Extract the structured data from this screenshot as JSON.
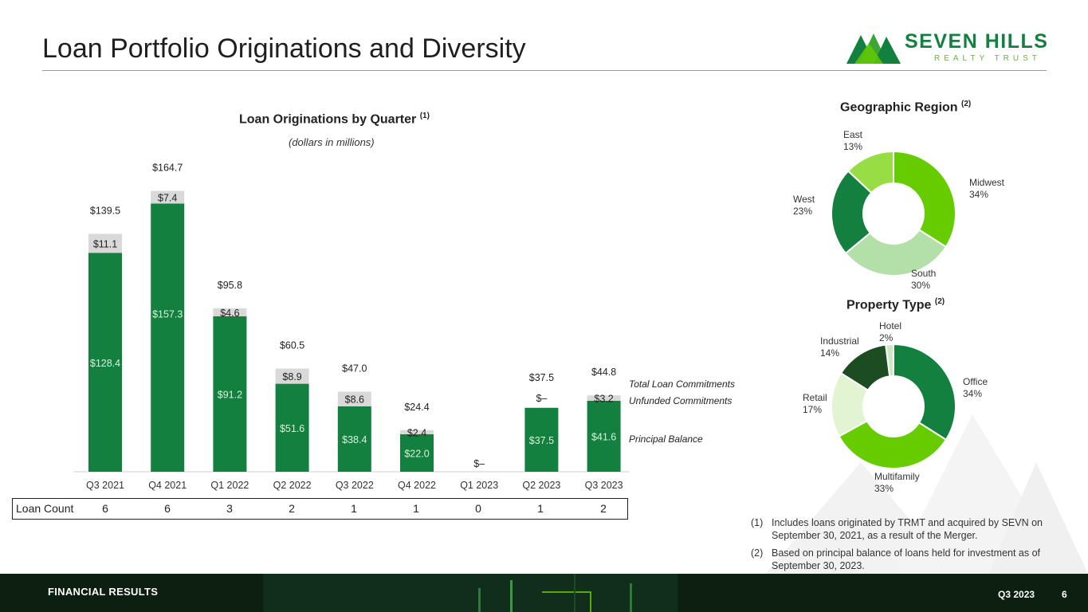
{
  "header": {
    "title": "Loan Portfolio Originations and Diversity",
    "logo_text": "SEVEN HILLS",
    "logo_subtext": "REALTY TRUST"
  },
  "colors": {
    "principal": "#138040",
    "unfunded": "#d9d9d9",
    "accent": "#66cc00"
  },
  "chart_data": [
    {
      "type": "bar",
      "title": "Loan Originations by Quarter",
      "title_note": "(1)",
      "subtitle": "(dollars in millions)",
      "categories": [
        "Q3 2021",
        "Q4 2021",
        "Q1 2022",
        "Q2 2022",
        "Q3 2022",
        "Q4 2022",
        "Q1 2023",
        "Q2 2023",
        "Q3 2023"
      ],
      "series": [
        {
          "name": "Principal Balance",
          "values": [
            128.4,
            157.3,
            91.2,
            51.6,
            38.4,
            22.0,
            0,
            37.5,
            41.6
          ],
          "labels": [
            "$128.4",
            "$157.3",
            "$91.2",
            "$51.6",
            "$38.4",
            "$22.0",
            "",
            "$37.5",
            "$41.6"
          ]
        },
        {
          "name": "Unfunded Commitments",
          "values": [
            11.1,
            7.4,
            4.6,
            8.9,
            8.6,
            2.4,
            0,
            0,
            3.2
          ],
          "labels": [
            "$11.1",
            "$7.4",
            "$4.6",
            "$8.9",
            "$8.6",
            "$2.4",
            "",
            "$–",
            "$3.2"
          ]
        }
      ],
      "totals": [
        139.5,
        164.7,
        95.8,
        60.5,
        47.0,
        24.4,
        0,
        37.5,
        44.8
      ],
      "total_labels": [
        "$139.5",
        "$164.7",
        "$95.8",
        "$60.5",
        "$47.0",
        "$24.4",
        "$–",
        "$37.5",
        "$44.8"
      ],
      "legend": [
        "Total Loan Commitments",
        "Unfunded Commitments",
        "Principal Balance"
      ],
      "ylim": [
        0,
        175
      ],
      "xlabel": "",
      "ylabel": ""
    },
    {
      "type": "pie",
      "title": "Geographic Region",
      "title_note": "(2)",
      "slices": [
        {
          "label": "Midwest",
          "value": 34,
          "pct": "34%",
          "color": "#66cc00"
        },
        {
          "label": "South",
          "value": 30,
          "pct": "30%",
          "color": "#b3e0a8"
        },
        {
          "label": "West",
          "value": 23,
          "pct": "23%",
          "color": "#138040"
        },
        {
          "label": "East",
          "value": 13,
          "pct": "13%",
          "color": "#99dd44"
        }
      ]
    },
    {
      "type": "pie",
      "title": "Property Type",
      "title_note": "(2)",
      "slices": [
        {
          "label": "Office",
          "value": 34,
          "pct": "34%",
          "color": "#138040"
        },
        {
          "label": "Multifamily",
          "value": 33,
          "pct": "33%",
          "color": "#66cc00"
        },
        {
          "label": "Retail",
          "value": 17,
          "pct": "17%",
          "color": "#e2f4d2"
        },
        {
          "label": "Industrial",
          "value": 14,
          "pct": "14%",
          "color": "#1c4d22"
        },
        {
          "label": "Hotel",
          "value": 2,
          "pct": "2%",
          "color": "#c8ecc0"
        }
      ]
    }
  ],
  "loan_count": {
    "label": "Loan Count",
    "values": [
      "6",
      "6",
      "3",
      "2",
      "1",
      "1",
      "0",
      "1",
      "2"
    ]
  },
  "footnotes": [
    {
      "num": "(1)",
      "text": "Includes loans originated by TRMT and acquired by SEVN on September 30, 2021, as a result of the Merger."
    },
    {
      "num": "(2)",
      "text": "Based on principal balance of loans held for investment as of September 30, 2023."
    }
  ],
  "footer": {
    "section": "FINANCIAL RESULTS",
    "period": "Q3 2023",
    "page": "6"
  }
}
